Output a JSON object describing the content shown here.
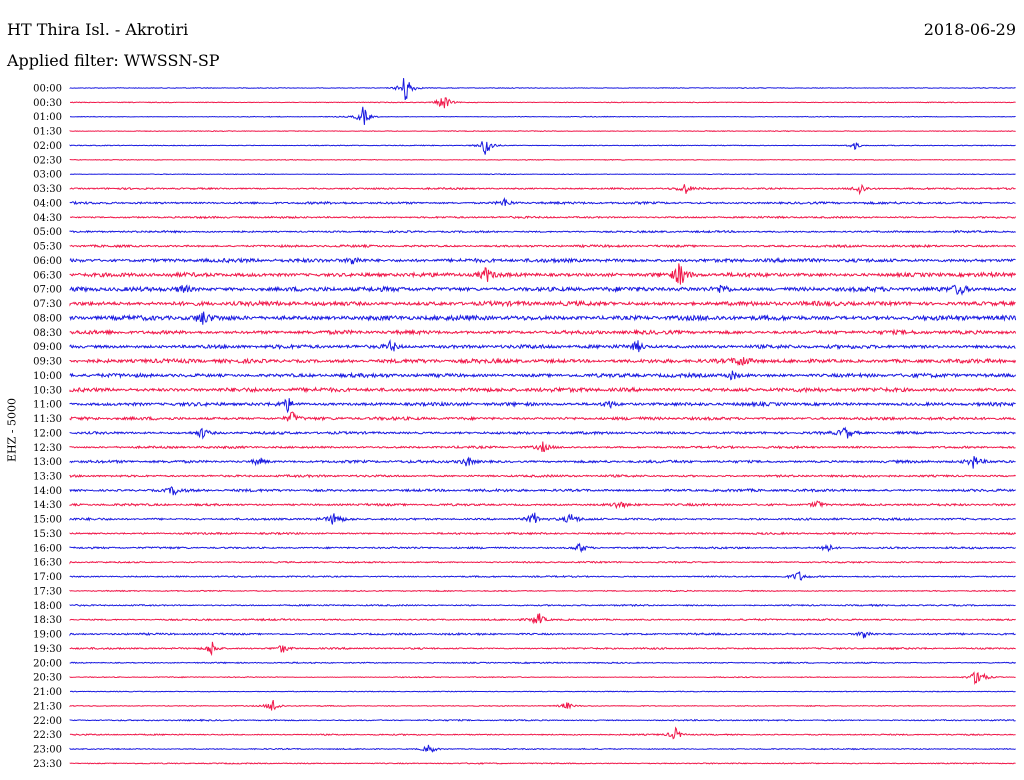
{
  "header": {
    "station": "HT Thira Isl. - Akrotiri",
    "date": "2018-06-29",
    "filter": "Applied filter: WWSSN-SP"
  },
  "channel_label": "EHZ - 5000",
  "colors": {
    "blue": "#1a1ae0",
    "red": "#f0184a"
  },
  "chart_data": {
    "type": "line",
    "title": "HT Thira Isl. - Akrotiri",
    "ylabel": "EHZ - 5000",
    "row_labels": [
      "00:00",
      "00:30",
      "01:00",
      "01:30",
      "02:00",
      "02:30",
      "03:00",
      "03:30",
      "04:00",
      "04:30",
      "05:00",
      "05:30",
      "06:00",
      "06:30",
      "07:00",
      "07:30",
      "08:00",
      "08:30",
      "09:00",
      "09:30",
      "10:00",
      "10:30",
      "11:00",
      "11:30",
      "12:00",
      "12:30",
      "13:00",
      "13:30",
      "14:00",
      "14:30",
      "15:00",
      "15:30",
      "16:00",
      "16:30",
      "17:00",
      "17:30",
      "18:00",
      "18:30",
      "19:00",
      "19:30",
      "20:00",
      "20:30",
      "21:00",
      "21:30",
      "22:00",
      "22:30",
      "23:00",
      "23:30"
    ],
    "row_colors": [
      "blue",
      "red",
      "blue",
      "red",
      "blue",
      "red",
      "blue",
      "red",
      "blue",
      "red",
      "blue",
      "red",
      "blue",
      "red",
      "blue",
      "red",
      "blue",
      "red",
      "blue",
      "red",
      "blue",
      "red",
      "blue",
      "red",
      "blue",
      "red",
      "blue",
      "red",
      "blue",
      "red",
      "blue",
      "red",
      "blue",
      "red",
      "blue",
      "red",
      "blue",
      "red",
      "blue",
      "red",
      "blue",
      "red",
      "blue",
      "red",
      "blue",
      "red",
      "blue",
      "red"
    ],
    "noise_level": [
      0.4,
      0.4,
      0.4,
      0.4,
      0.4,
      0.4,
      0.4,
      0.9,
      1.2,
      1.0,
      1.0,
      1.2,
      2.0,
      2.2,
      2.4,
      2.4,
      2.6,
      2.0,
      2.0,
      2.2,
      2.0,
      2.2,
      1.8,
      1.6,
      1.4,
      1.2,
      1.4,
      1.2,
      1.4,
      1.2,
      1.2,
      1.0,
      1.0,
      0.8,
      0.8,
      0.6,
      0.8,
      0.9,
      1.0,
      0.9,
      0.7,
      0.5,
      0.4,
      0.5,
      0.7,
      0.7,
      0.6,
      0.6
    ],
    "events": [
      {
        "row": 0,
        "x": 0.355,
        "amp": 18
      },
      {
        "row": 1,
        "x": 0.395,
        "amp": 10
      },
      {
        "row": 2,
        "x": 0.31,
        "amp": 11
      },
      {
        "row": 4,
        "x": 0.44,
        "amp": 13
      },
      {
        "row": 4,
        "x": 0.83,
        "amp": 4
      },
      {
        "row": 7,
        "x": 0.65,
        "amp": 6
      },
      {
        "row": 7,
        "x": 0.835,
        "amp": 7
      },
      {
        "row": 8,
        "x": 0.46,
        "amp": 5
      },
      {
        "row": 12,
        "x": 0.3,
        "amp": 6
      },
      {
        "row": 13,
        "x": 0.44,
        "amp": 8
      },
      {
        "row": 13,
        "x": 0.645,
        "amp": 14
      },
      {
        "row": 14,
        "x": 0.12,
        "amp": 6
      },
      {
        "row": 14,
        "x": 0.69,
        "amp": 6
      },
      {
        "row": 14,
        "x": 0.94,
        "amp": 7
      },
      {
        "row": 16,
        "x": 0.14,
        "amp": 7
      },
      {
        "row": 18,
        "x": 0.34,
        "amp": 7
      },
      {
        "row": 18,
        "x": 0.6,
        "amp": 6
      },
      {
        "row": 19,
        "x": 0.71,
        "amp": 6
      },
      {
        "row": 20,
        "x": 0.7,
        "amp": 5
      },
      {
        "row": 22,
        "x": 0.23,
        "amp": 7
      },
      {
        "row": 22,
        "x": 0.57,
        "amp": 5
      },
      {
        "row": 23,
        "x": 0.235,
        "amp": 7
      },
      {
        "row": 24,
        "x": 0.14,
        "amp": 6
      },
      {
        "row": 24,
        "x": 0.82,
        "amp": 7
      },
      {
        "row": 25,
        "x": 0.5,
        "amp": 5
      },
      {
        "row": 26,
        "x": 0.2,
        "amp": 5
      },
      {
        "row": 26,
        "x": 0.42,
        "amp": 6
      },
      {
        "row": 26,
        "x": 0.955,
        "amp": 7
      },
      {
        "row": 28,
        "x": 0.11,
        "amp": 5
      },
      {
        "row": 29,
        "x": 0.58,
        "amp": 5
      },
      {
        "row": 29,
        "x": 0.79,
        "amp": 5
      },
      {
        "row": 30,
        "x": 0.28,
        "amp": 8
      },
      {
        "row": 30,
        "x": 0.49,
        "amp": 8
      },
      {
        "row": 30,
        "x": 0.53,
        "amp": 6
      },
      {
        "row": 32,
        "x": 0.54,
        "amp": 6
      },
      {
        "row": 32,
        "x": 0.8,
        "amp": 6
      },
      {
        "row": 34,
        "x": 0.77,
        "amp": 6
      },
      {
        "row": 37,
        "x": 0.495,
        "amp": 8
      },
      {
        "row": 38,
        "x": 0.84,
        "amp": 6
      },
      {
        "row": 39,
        "x": 0.15,
        "amp": 8
      },
      {
        "row": 39,
        "x": 0.225,
        "amp": 5
      },
      {
        "row": 41,
        "x": 0.96,
        "amp": 13
      },
      {
        "row": 43,
        "x": 0.215,
        "amp": 8
      },
      {
        "row": 43,
        "x": 0.525,
        "amp": 4
      },
      {
        "row": 45,
        "x": 0.64,
        "amp": 7
      },
      {
        "row": 46,
        "x": 0.38,
        "amp": 6
      }
    ]
  }
}
